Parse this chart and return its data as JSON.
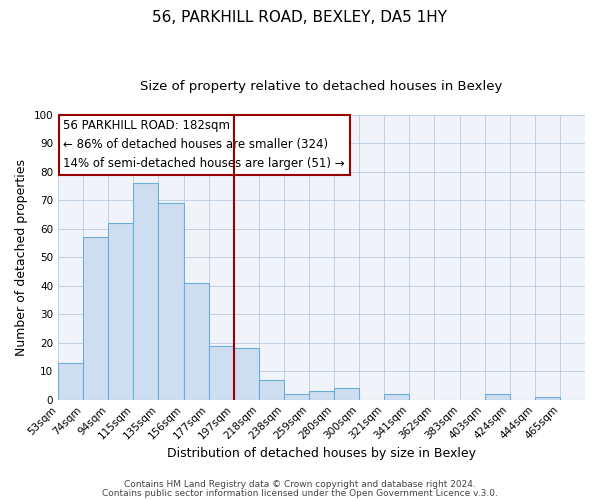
{
  "title": "56, PARKHILL ROAD, BEXLEY, DA5 1HY",
  "subtitle": "Size of property relative to detached houses in Bexley",
  "xlabel": "Distribution of detached houses by size in Bexley",
  "ylabel": "Number of detached properties",
  "bar_labels": [
    "53sqm",
    "74sqm",
    "94sqm",
    "115sqm",
    "135sqm",
    "156sqm",
    "177sqm",
    "197sqm",
    "218sqm",
    "238sqm",
    "259sqm",
    "280sqm",
    "300sqm",
    "321sqm",
    "341sqm",
    "362sqm",
    "383sqm",
    "403sqm",
    "424sqm",
    "444sqm",
    "465sqm"
  ],
  "bar_heights": [
    13,
    57,
    62,
    76,
    69,
    41,
    19,
    18,
    7,
    2,
    3,
    4,
    0,
    2,
    0,
    0,
    0,
    2,
    0,
    1,
    0
  ],
  "bar_color": "#cfddf0",
  "bar_edge_color": "#6baed6",
  "vline_color": "#990000",
  "annotation_title": "56 PARKHILL ROAD: 182sqm",
  "annotation_line1": "← 86% of detached houses are smaller (324)",
  "annotation_line2": "14% of semi-detached houses are larger (51) →",
  "annotation_box_facecolor": "#ffffff",
  "annotation_box_edgecolor": "#990000",
  "footer1": "Contains HM Land Registry data © Crown copyright and database right 2024.",
  "footer2": "Contains public sector information licensed under the Open Government Licence v.3.0.",
  "ylim": [
    0,
    100
  ],
  "title_fontsize": 11,
  "subtitle_fontsize": 9.5,
  "xlabel_fontsize": 9,
  "ylabel_fontsize": 9,
  "tick_fontsize": 7.5,
  "annotation_fontsize": 8.5,
  "footer_fontsize": 6.5,
  "vline_bin_index": 6
}
